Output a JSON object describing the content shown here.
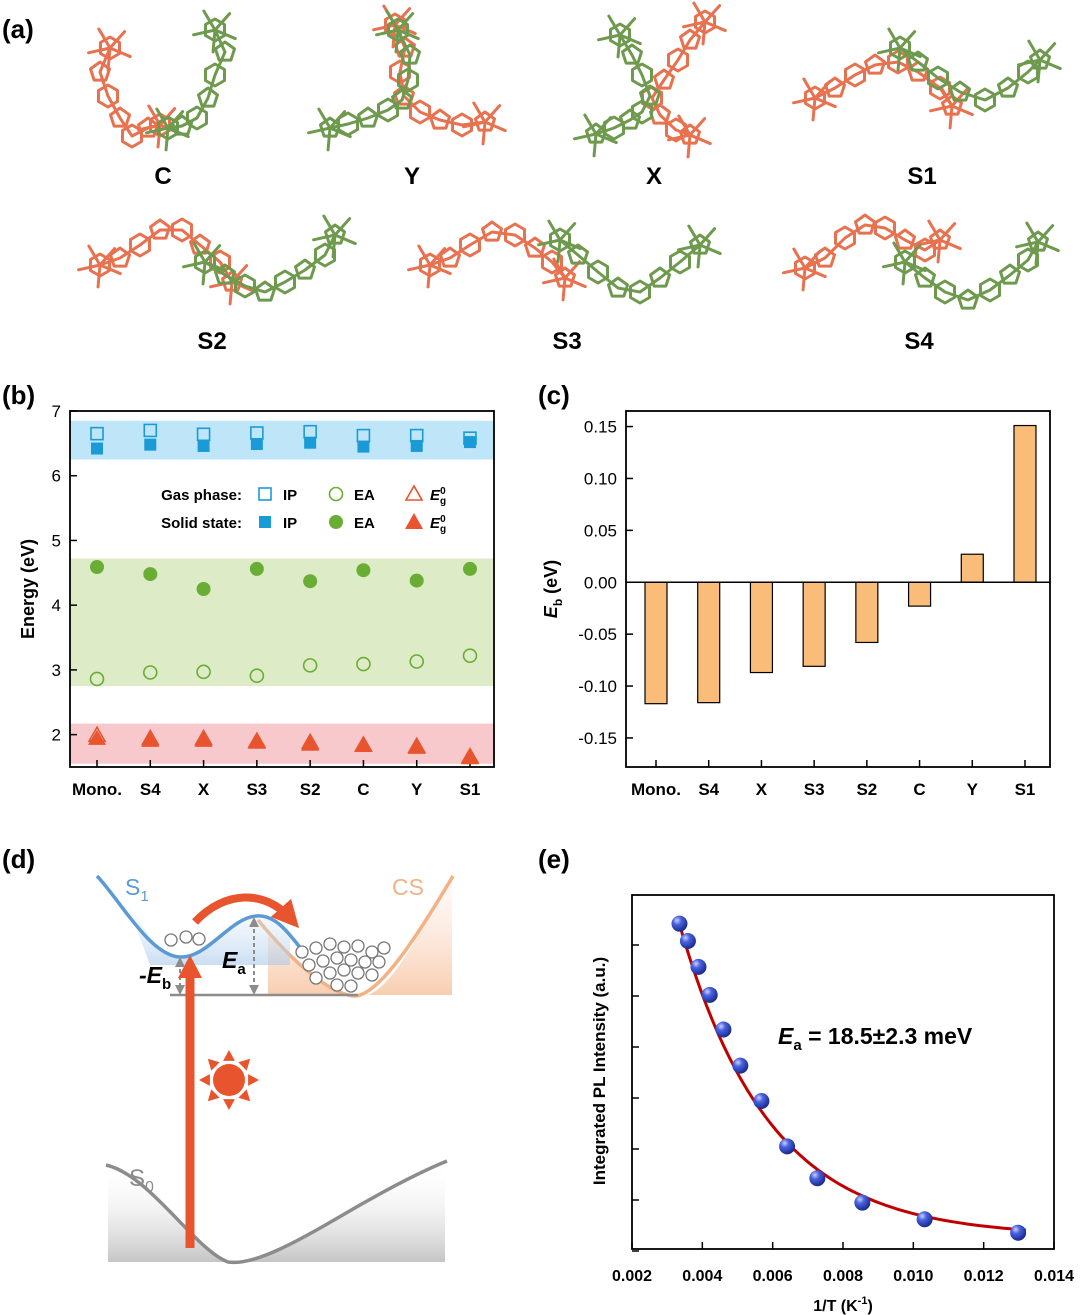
{
  "panel_a": {
    "label": "(a)",
    "structures": [
      "C",
      "Y",
      "X",
      "S1",
      "S2",
      "S3",
      "S4"
    ],
    "colors": {
      "molecule_1": "#E8714F",
      "molecule_2": "#6E9A4E"
    }
  },
  "chart_data": [
    {
      "panel": "(b)",
      "type": "scatter",
      "categories": [
        "Mono.",
        "S4",
        "X",
        "S3",
        "S2",
        "C",
        "Y",
        "S1"
      ],
      "ylabel": "Energy (eV)",
      "ylim": [
        1.5,
        7
      ],
      "yticks": [
        "2",
        "3",
        "4",
        "5",
        "6",
        "7"
      ],
      "legend": {
        "placement": "top-center",
        "rows": [
          "Gas phase:",
          "Solid state:"
        ],
        "columns": [
          "IP",
          "EA",
          "E",
          "g",
          "0"
        ]
      },
      "bands": [
        {
          "from": 6.25,
          "to": 6.85,
          "color": "#BFE6F8"
        },
        {
          "from": 2.75,
          "to": 4.72,
          "color": "#DDEBC6"
        },
        {
          "from": 1.55,
          "to": 2.17,
          "color": "#F8C9CC"
        }
      ],
      "series": [
        {
          "name": "IP",
          "state": "Gas phase",
          "marker": "square-open",
          "color": "#1A9BD7",
          "values": [
            6.65,
            6.7,
            6.64,
            6.66,
            6.68,
            6.62,
            6.62,
            6.58
          ]
        },
        {
          "name": "IP",
          "state": "Solid state",
          "marker": "square-filled",
          "color": "#1A9BD7",
          "values": [
            6.42,
            6.48,
            6.46,
            6.49,
            6.51,
            6.45,
            6.46,
            6.52
          ]
        },
        {
          "name": "EA",
          "state": "Gas phase",
          "marker": "circle-open",
          "color": "#6AAD35",
          "values": [
            2.86,
            2.96,
            2.97,
            2.91,
            3.07,
            3.09,
            3.13,
            3.22
          ]
        },
        {
          "name": "EA",
          "state": "Solid state",
          "marker": "circle-filled",
          "color": "#6AAD35",
          "values": [
            4.59,
            4.48,
            4.25,
            4.56,
            4.37,
            4.54,
            4.38,
            4.56
          ]
        },
        {
          "name": "E g 0",
          "state": "Gas phase",
          "marker": "triangle-open",
          "color": "#E8542E",
          "values": [
            1.99,
            1.94,
            1.94,
            1.9,
            1.88,
            1.84,
            1.82,
            1.66
          ]
        },
        {
          "name": "E g 0",
          "state": "Solid state",
          "marker": "triangle-filled",
          "color": "#E8542E",
          "values": [
            1.95,
            1.92,
            1.92,
            1.89,
            1.86,
            1.84,
            1.81,
            1.65
          ]
        }
      ]
    },
    {
      "panel": "(c)",
      "type": "bar",
      "categories": [
        "Mono.",
        "S4",
        "X",
        "S3",
        "S2",
        "C",
        "Y",
        "S1"
      ],
      "values": [
        -0.117,
        -0.116,
        -0.087,
        -0.081,
        -0.058,
        -0.023,
        0.027,
        0.151
      ],
      "ylabel_main": "E",
      "ylabel_sub": "b",
      "ylabel_unit": " (eV)",
      "ylim": [
        -0.178,
        0.165
      ],
      "yticks": [
        "-0.15",
        "-0.10",
        "-0.05",
        "0.00",
        "0.05",
        "0.10",
        "0.15"
      ],
      "bar_color": "#F9BC79"
    },
    {
      "panel": "(e)",
      "type": "scatter",
      "xlabel": "1/T (K",
      "xlabel_sup": "-1",
      "xlabel_end": ")",
      "ylabel": "Integrated PL Intensity (a.u.)",
      "xlim": [
        0.002,
        0.014
      ],
      "xticks": [
        "0.002",
        "0.004",
        "0.006",
        "0.008",
        "0.010",
        "0.012",
        "0.014"
      ],
      "ylim": [
        0,
        1
      ],
      "annotation_main": "E",
      "annotation_sub": "a",
      "annotation_rest": " = 18.5±2.3 meV",
      "points": {
        "x": [
          0.00335,
          0.00359,
          0.00389,
          0.00421,
          0.0046,
          0.00508,
          0.00568,
          0.00641,
          0.00727,
          0.00855,
          0.01032,
          0.01298
        ],
        "y": [
          0.919,
          0.87,
          0.797,
          0.718,
          0.62,
          0.518,
          0.418,
          0.29,
          0.2,
          0.131,
          0.084,
          0.046
        ]
      },
      "fit_color": "#C00000",
      "point_color": "#2A3FB8"
    }
  ],
  "panel_d": {
    "label": "(d)",
    "s1_main": "S",
    "s1_sub": "1",
    "cs": "CS",
    "s0_main": "S",
    "s0_sub": "0",
    "eb_main": "-E",
    "eb_sub": "b",
    "ea_main": "E",
    "ea_sub": "a",
    "colors": {
      "s1": "#5B9BD5",
      "cs": "#F4B183",
      "s0": "#8C8C8C",
      "arrow": "#E8542E"
    }
  }
}
